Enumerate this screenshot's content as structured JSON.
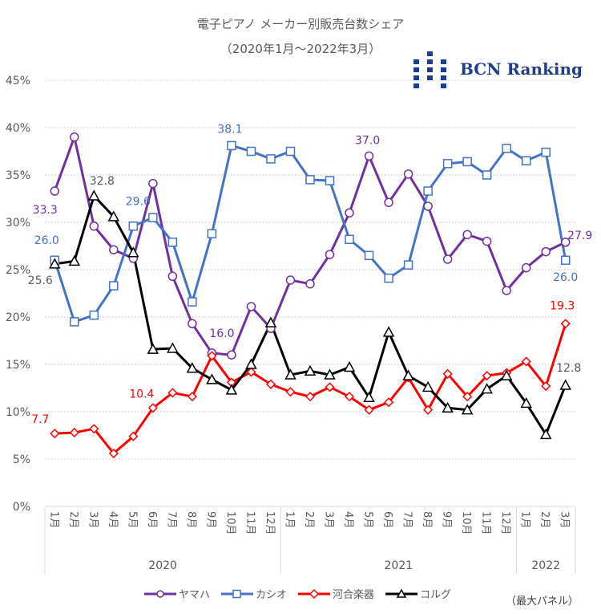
{
  "chart_data": {
    "type": "line",
    "title": "電子ピアノ メーカー別販売台数シェア",
    "subtitle": "（2020年1月～2022年3月）",
    "xlabel": "",
    "ylabel": "",
    "ylim": [
      0,
      45
    ],
    "yticks": [
      "0%",
      "5%",
      "10%",
      "15%",
      "20%",
      "25%",
      "30%",
      "35%",
      "40%",
      "45%"
    ],
    "ytick_values": [
      0,
      5,
      10,
      15,
      20,
      25,
      30,
      35,
      40,
      45
    ],
    "grid": true,
    "legend_position": "bottom",
    "categories": [
      "1月",
      "2月",
      "3月",
      "4月",
      "5月",
      "6月",
      "7月",
      "8月",
      "9月",
      "10月",
      "11月",
      "12月",
      "1月",
      "2月",
      "3月",
      "4月",
      "5月",
      "6月",
      "7月",
      "8月",
      "9月",
      "10月",
      "11月",
      "12月",
      "1月",
      "2月",
      "3月"
    ],
    "year_groups": [
      {
        "label": "2020",
        "count": 12
      },
      {
        "label": "2021",
        "count": 12
      },
      {
        "label": "2022",
        "count": 3
      }
    ],
    "series": [
      {
        "name": "ヤマハ",
        "color": "#7030a0",
        "marker": "circle",
        "values": [
          33.3,
          39.0,
          29.6,
          27.1,
          26.2,
          34.1,
          24.3,
          19.3,
          16.2,
          16.0,
          21.1,
          18.8,
          23.9,
          23.5,
          26.6,
          31.0,
          37.0,
          32.1,
          35.1,
          31.7,
          26.1,
          28.7,
          28.0,
          22.8,
          25.2,
          26.9,
          27.9
        ]
      },
      {
        "name": "カシオ",
        "color": "#4472c4",
        "marker": "square",
        "values": [
          26.0,
          19.5,
          20.2,
          23.3,
          29.6,
          30.5,
          27.9,
          21.6,
          28.8,
          38.1,
          37.5,
          36.7,
          37.5,
          34.5,
          34.4,
          28.2,
          26.5,
          24.1,
          25.5,
          33.3,
          36.2,
          36.4,
          35.0,
          37.8,
          36.5,
          37.4,
          26.0
        ]
      },
      {
        "name": "河合楽器",
        "color": "#ff0000",
        "marker": "diamond",
        "values": [
          7.7,
          7.8,
          8.2,
          5.6,
          7.4,
          10.4,
          12.0,
          11.6,
          15.9,
          13.1,
          14.2,
          12.9,
          12.1,
          11.6,
          12.6,
          11.6,
          10.2,
          11.0,
          13.6,
          10.2,
          14.0,
          11.6,
          13.8,
          14.1,
          15.3,
          12.7,
          19.3
        ]
      },
      {
        "name": "コルグ",
        "color": "#000000",
        "marker": "triangle",
        "values": [
          25.6,
          25.9,
          32.8,
          30.6,
          26.8,
          16.6,
          16.7,
          14.6,
          13.4,
          12.3,
          15.0,
          19.4,
          13.9,
          14.3,
          13.9,
          14.7,
          11.5,
          18.4,
          13.8,
          12.6,
          10.4,
          10.2,
          12.4,
          13.8,
          10.9,
          7.6,
          12.8
        ]
      }
    ],
    "annotations": [
      {
        "series": 0,
        "index": 0,
        "text": "33.3"
      },
      {
        "series": 0,
        "index": 9,
        "text": "16.0"
      },
      {
        "series": 0,
        "index": 16,
        "text": "37.0"
      },
      {
        "series": 0,
        "index": 26,
        "text": "27.9"
      },
      {
        "series": 1,
        "index": 0,
        "text": "26.0"
      },
      {
        "series": 1,
        "index": 4,
        "text": "29.6"
      },
      {
        "series": 1,
        "index": 9,
        "text": "38.1"
      },
      {
        "series": 1,
        "index": 26,
        "text": "26.0"
      },
      {
        "series": 2,
        "index": 0,
        "text": "7.7"
      },
      {
        "series": 2,
        "index": 5,
        "text": "10.4"
      },
      {
        "series": 2,
        "index": 26,
        "text": "19.3"
      },
      {
        "series": 3,
        "index": 0,
        "text": "25.6"
      },
      {
        "series": 3,
        "index": 2,
        "text": "32.8"
      },
      {
        "series": 3,
        "index": 26,
        "text": "12.8"
      }
    ]
  },
  "logo": {
    "text": "BCN Ranking",
    "color": "#1f3d8a"
  },
  "note": "（最大パネル）"
}
